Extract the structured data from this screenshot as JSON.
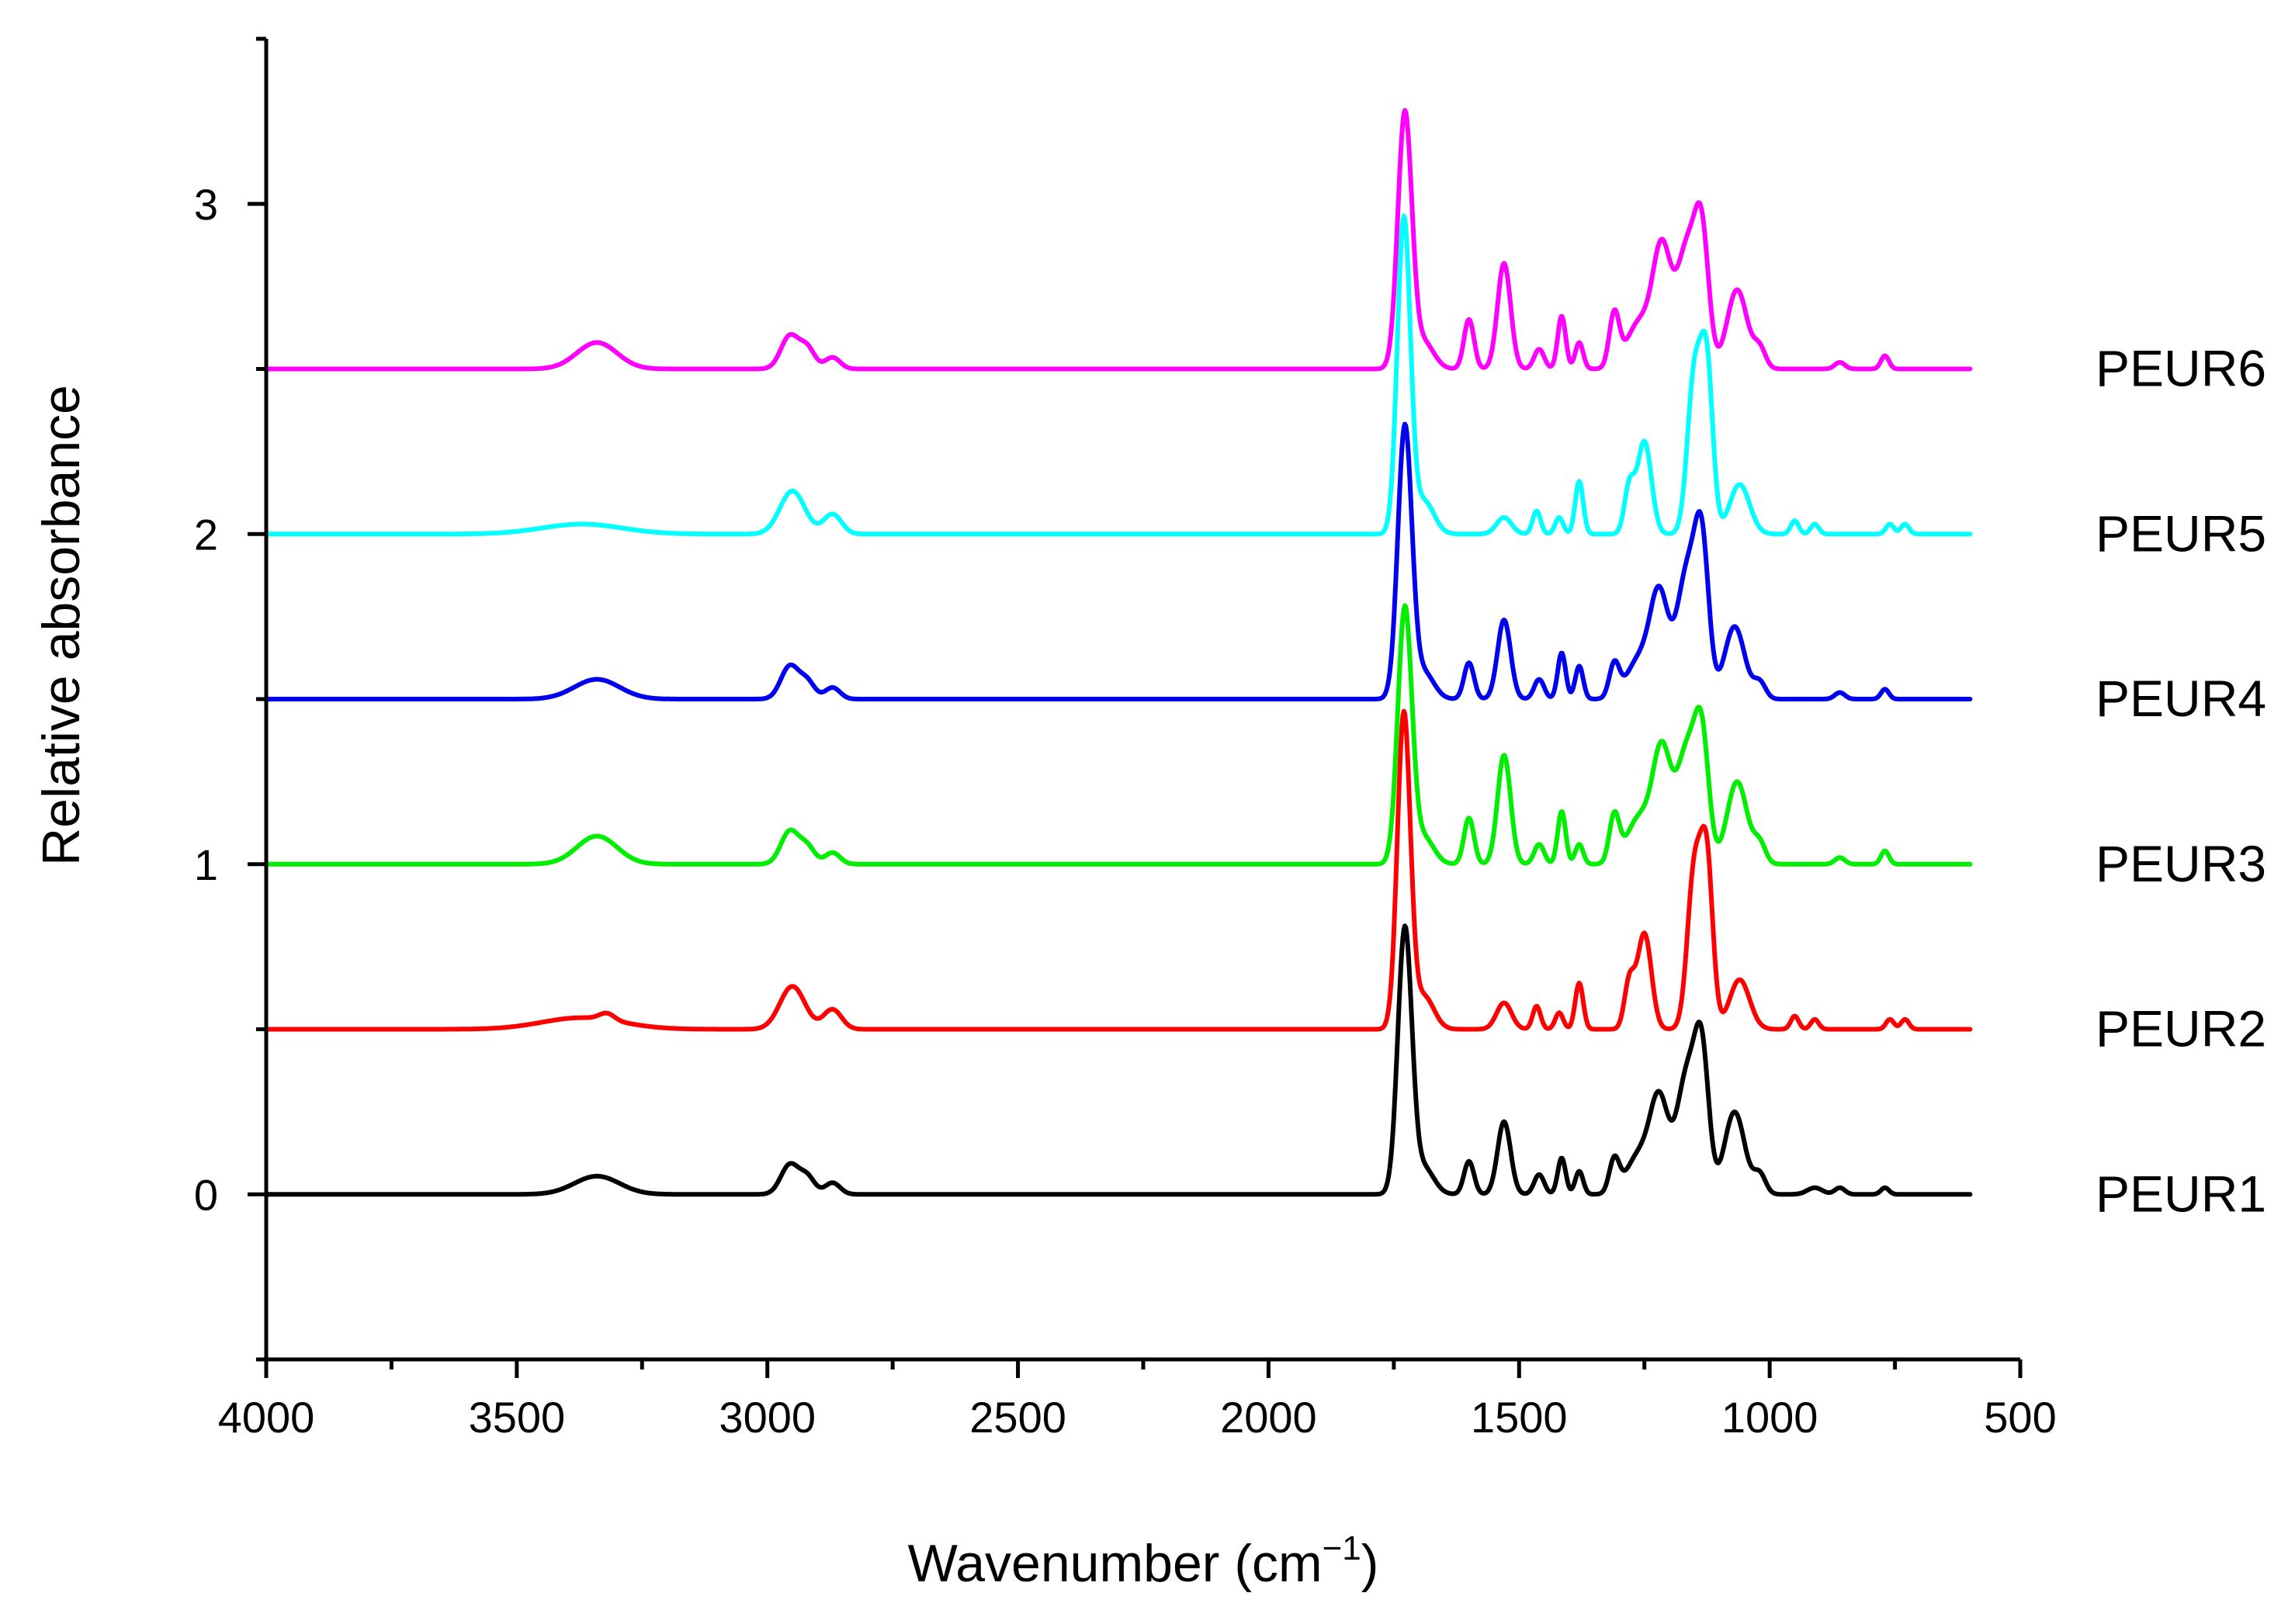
{
  "chart_data": {
    "type": "line",
    "title": "",
    "xlabel_main": "Wavenumber (cm",
    "xlabel_sup": "−1",
    "xlabel_close": ")",
    "ylabel": "Relative absorbance",
    "xlim": [
      4000,
      500
    ],
    "ylim": [
      -0.5,
      3.5
    ],
    "x_ticks": [
      4000,
      3500,
      3000,
      2500,
      2000,
      1500,
      1000,
      500
    ],
    "x_tick_labels": [
      "4000",
      "3500",
      "3000",
      "2500",
      "2000",
      "1500",
      "1000",
      "500"
    ],
    "y_ticks": [
      0,
      1,
      2,
      3
    ],
    "y_tick_labels": [
      "0",
      "1",
      "2",
      "3"
    ],
    "x_range": [
      4000,
      600
    ],
    "series": [
      {
        "name": "PEUR1",
        "color": "#000000",
        "offset": 0,
        "peaks": [
          {
            "x": 3340,
            "h": 0.055,
            "w": 45
          },
          {
            "x": 2955,
            "h": 0.09,
            "w": 18
          },
          {
            "x": 2920,
            "h": 0.05,
            "w": 15
          },
          {
            "x": 2870,
            "h": 0.035,
            "w": 15
          },
          {
            "x": 1728,
            "h": 0.8,
            "w": 14
          },
          {
            "x": 1690,
            "h": 0.08,
            "w": 20
          },
          {
            "x": 1600,
            "h": 0.1,
            "w": 10
          },
          {
            "x": 1530,
            "h": 0.22,
            "w": 13
          },
          {
            "x": 1460,
            "h": 0.06,
            "w": 10
          },
          {
            "x": 1415,
            "h": 0.11,
            "w": 8
          },
          {
            "x": 1380,
            "h": 0.07,
            "w": 8
          },
          {
            "x": 1310,
            "h": 0.1,
            "w": 10
          },
          {
            "x": 1260,
            "h": 0.12,
            "w": 25
          },
          {
            "x": 1220,
            "h": 0.27,
            "w": 18
          },
          {
            "x": 1165,
            "h": 0.36,
            "w": 20
          },
          {
            "x": 1135,
            "h": 0.38,
            "w": 14
          },
          {
            "x": 1070,
            "h": 0.25,
            "w": 20
          },
          {
            "x": 1020,
            "h": 0.06,
            "w": 12
          },
          {
            "x": 910,
            "h": 0.02,
            "w": 15
          },
          {
            "x": 860,
            "h": 0.02,
            "w": 10
          },
          {
            "x": 770,
            "h": 0.02,
            "w": 8
          }
        ]
      },
      {
        "name": "PEUR2",
        "color": "#ff0000",
        "offset": 0.5,
        "peaks": [
          {
            "x": 3370,
            "h": 0.035,
            "w": 80
          },
          {
            "x": 3320,
            "h": 0.02,
            "w": 15
          },
          {
            "x": 2950,
            "h": 0.13,
            "w": 25
          },
          {
            "x": 2870,
            "h": 0.06,
            "w": 18
          },
          {
            "x": 1730,
            "h": 0.95,
            "w": 13
          },
          {
            "x": 1690,
            "h": 0.1,
            "w": 20
          },
          {
            "x": 1530,
            "h": 0.08,
            "w": 15
          },
          {
            "x": 1465,
            "h": 0.07,
            "w": 8
          },
          {
            "x": 1420,
            "h": 0.05,
            "w": 8
          },
          {
            "x": 1380,
            "h": 0.14,
            "w": 8
          },
          {
            "x": 1280,
            "h": 0.14,
            "w": 10
          },
          {
            "x": 1250,
            "h": 0.29,
            "w": 14
          },
          {
            "x": 1150,
            "h": 0.48,
            "w": 14
          },
          {
            "x": 1125,
            "h": 0.48,
            "w": 12
          },
          {
            "x": 1060,
            "h": 0.15,
            "w": 20
          },
          {
            "x": 950,
            "h": 0.04,
            "w": 8
          },
          {
            "x": 910,
            "h": 0.03,
            "w": 8
          },
          {
            "x": 760,
            "h": 0.03,
            "w": 8
          },
          {
            "x": 730,
            "h": 0.03,
            "w": 8
          }
        ]
      },
      {
        "name": "PEUR3",
        "color": "#00ee00",
        "offset": 1,
        "peaks": [
          {
            "x": 3340,
            "h": 0.085,
            "w": 40
          },
          {
            "x": 2955,
            "h": 0.1,
            "w": 18
          },
          {
            "x": 2920,
            "h": 0.05,
            "w": 15
          },
          {
            "x": 2870,
            "h": 0.035,
            "w": 15
          },
          {
            "x": 1728,
            "h": 0.77,
            "w": 14
          },
          {
            "x": 1690,
            "h": 0.08,
            "w": 20
          },
          {
            "x": 1600,
            "h": 0.14,
            "w": 10
          },
          {
            "x": 1530,
            "h": 0.33,
            "w": 13
          },
          {
            "x": 1460,
            "h": 0.06,
            "w": 10
          },
          {
            "x": 1415,
            "h": 0.16,
            "w": 8
          },
          {
            "x": 1380,
            "h": 0.06,
            "w": 8
          },
          {
            "x": 1310,
            "h": 0.14,
            "w": 10
          },
          {
            "x": 1260,
            "h": 0.14,
            "w": 25
          },
          {
            "x": 1215,
            "h": 0.33,
            "w": 18
          },
          {
            "x": 1165,
            "h": 0.34,
            "w": 20
          },
          {
            "x": 1135,
            "h": 0.34,
            "w": 14
          },
          {
            "x": 1065,
            "h": 0.25,
            "w": 20
          },
          {
            "x": 1020,
            "h": 0.06,
            "w": 12
          },
          {
            "x": 860,
            "h": 0.02,
            "w": 10
          },
          {
            "x": 770,
            "h": 0.04,
            "w": 8
          }
        ]
      },
      {
        "name": "PEUR4",
        "color": "#0000ee",
        "offset": 1.5,
        "peaks": [
          {
            "x": 3340,
            "h": 0.06,
            "w": 45
          },
          {
            "x": 2955,
            "h": 0.1,
            "w": 18
          },
          {
            "x": 2920,
            "h": 0.05,
            "w": 15
          },
          {
            "x": 2870,
            "h": 0.035,
            "w": 15
          },
          {
            "x": 1728,
            "h": 0.82,
            "w": 14
          },
          {
            "x": 1690,
            "h": 0.08,
            "w": 20
          },
          {
            "x": 1600,
            "h": 0.11,
            "w": 10
          },
          {
            "x": 1530,
            "h": 0.24,
            "w": 13
          },
          {
            "x": 1460,
            "h": 0.06,
            "w": 10
          },
          {
            "x": 1415,
            "h": 0.14,
            "w": 8
          },
          {
            "x": 1380,
            "h": 0.1,
            "w": 8
          },
          {
            "x": 1310,
            "h": 0.1,
            "w": 10
          },
          {
            "x": 1260,
            "h": 0.12,
            "w": 25
          },
          {
            "x": 1220,
            "h": 0.3,
            "w": 18
          },
          {
            "x": 1165,
            "h": 0.38,
            "w": 20
          },
          {
            "x": 1135,
            "h": 0.42,
            "w": 14
          },
          {
            "x": 1070,
            "h": 0.22,
            "w": 20
          },
          {
            "x": 1020,
            "h": 0.05,
            "w": 12
          },
          {
            "x": 860,
            "h": 0.02,
            "w": 10
          },
          {
            "x": 770,
            "h": 0.03,
            "w": 8
          }
        ]
      },
      {
        "name": "PEUR5",
        "color": "#00ffff",
        "offset": 2,
        "peaks": [
          {
            "x": 3370,
            "h": 0.03,
            "w": 80
          },
          {
            "x": 2950,
            "h": 0.13,
            "w": 25
          },
          {
            "x": 2870,
            "h": 0.06,
            "w": 18
          },
          {
            "x": 1730,
            "h": 0.95,
            "w": 13
          },
          {
            "x": 1690,
            "h": 0.1,
            "w": 20
          },
          {
            "x": 1530,
            "h": 0.05,
            "w": 15
          },
          {
            "x": 1465,
            "h": 0.07,
            "w": 8
          },
          {
            "x": 1420,
            "h": 0.05,
            "w": 8
          },
          {
            "x": 1380,
            "h": 0.16,
            "w": 8
          },
          {
            "x": 1280,
            "h": 0.14,
            "w": 10
          },
          {
            "x": 1250,
            "h": 0.28,
            "w": 14
          },
          {
            "x": 1150,
            "h": 0.48,
            "w": 14
          },
          {
            "x": 1125,
            "h": 0.48,
            "w": 12
          },
          {
            "x": 1060,
            "h": 0.15,
            "w": 20
          },
          {
            "x": 950,
            "h": 0.04,
            "w": 8
          },
          {
            "x": 910,
            "h": 0.03,
            "w": 8
          },
          {
            "x": 760,
            "h": 0.03,
            "w": 8
          },
          {
            "x": 730,
            "h": 0.03,
            "w": 8
          }
        ]
      },
      {
        "name": "PEUR6",
        "color": "#ff00ff",
        "offset": 2.5,
        "peaks": [
          {
            "x": 3340,
            "h": 0.08,
            "w": 40
          },
          {
            "x": 2955,
            "h": 0.1,
            "w": 18
          },
          {
            "x": 2920,
            "h": 0.06,
            "w": 15
          },
          {
            "x": 2870,
            "h": 0.035,
            "w": 15
          },
          {
            "x": 1728,
            "h": 0.77,
            "w": 14
          },
          {
            "x": 1690,
            "h": 0.08,
            "w": 20
          },
          {
            "x": 1600,
            "h": 0.15,
            "w": 10
          },
          {
            "x": 1530,
            "h": 0.32,
            "w": 13
          },
          {
            "x": 1460,
            "h": 0.06,
            "w": 10
          },
          {
            "x": 1415,
            "h": 0.16,
            "w": 8
          },
          {
            "x": 1380,
            "h": 0.08,
            "w": 8
          },
          {
            "x": 1310,
            "h": 0.16,
            "w": 10
          },
          {
            "x": 1260,
            "h": 0.14,
            "w": 25
          },
          {
            "x": 1215,
            "h": 0.35,
            "w": 18
          },
          {
            "x": 1165,
            "h": 0.36,
            "w": 20
          },
          {
            "x": 1135,
            "h": 0.36,
            "w": 14
          },
          {
            "x": 1065,
            "h": 0.24,
            "w": 20
          },
          {
            "x": 1020,
            "h": 0.06,
            "w": 12
          },
          {
            "x": 860,
            "h": 0.02,
            "w": 10
          },
          {
            "x": 770,
            "h": 0.04,
            "w": 8
          }
        ]
      }
    ]
  }
}
